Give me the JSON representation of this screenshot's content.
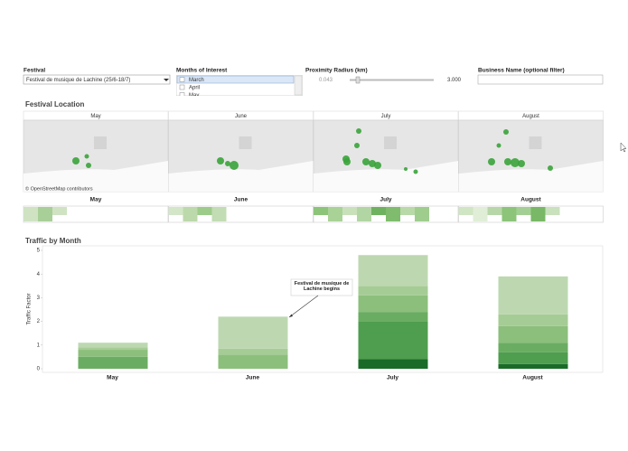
{
  "filters": {
    "festival": {
      "label": "Festival",
      "selected": "Festival de musique de Lachine (25/6-18/7)"
    },
    "months": {
      "label": "Months of Interest",
      "options": [
        "March",
        "April",
        "May"
      ]
    },
    "radius": {
      "label": "Proximity Radius (km)",
      "min": "0.043",
      "max": "3.000"
    },
    "business": {
      "label": "Business Name (optional filter)"
    }
  },
  "festival_location": {
    "title": "Festival Location",
    "months": [
      "May",
      "June",
      "July",
      "August"
    ],
    "attribution": "© OpenStreetMap contributors"
  },
  "chart_data": {
    "type": "bar",
    "title": "Traffic by Month",
    "y_label": "Traffic Factor",
    "categories": [
      "May",
      "June",
      "July",
      "August"
    ],
    "series": [
      {
        "color": "#1a6b28",
        "values": [
          null,
          null,
          0.4,
          0.2
        ]
      },
      {
        "color": "#4f9d4f",
        "values": [
          null,
          null,
          1.6,
          0.5
        ]
      },
      {
        "color": "#6aad62",
        "values": [
          0.5,
          null,
          0.4,
          0.4
        ]
      },
      {
        "color": "#8cbf7c",
        "values": [
          0.3,
          0.6,
          0.7,
          0.7
        ]
      },
      {
        "color": "#a6cc96",
        "values": [
          0.1,
          0.25,
          0.4,
          0.5
        ]
      },
      {
        "color": "#bdd8b1",
        "values": [
          0.2,
          1.35,
          1.3,
          1.6
        ]
      }
    ],
    "ylim": [
      0,
      5
    ],
    "yticks": [
      0,
      1,
      2,
      3,
      4,
      5
    ],
    "annotation": "Festival de musique de Lachine begins"
  }
}
